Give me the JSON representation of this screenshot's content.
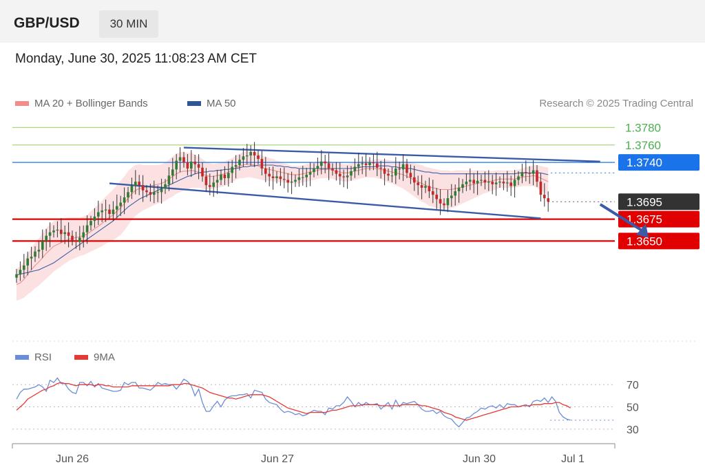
{
  "header": {
    "symbol": "GBP/USD",
    "timeframe": "30 MIN",
    "datetime": "Monday, June 30, 2025 11:08:23 AM CET"
  },
  "legend": {
    "ma20": "MA 20 + Bollinger Bands",
    "ma50": "MA 50",
    "copyright": "Research © 2025 Trading Central"
  },
  "rsi_legend": {
    "rsi": "RSI",
    "ma9": "9MA"
  },
  "colors": {
    "up": "#2e7d32",
    "down": "#c62828",
    "band": "#f8c9c9",
    "ma20": "#ef8f8f",
    "ma50": "#3f5fa8",
    "green_level": "#8bc34a",
    "blue_level": "#1a73e8",
    "red_level": "#e00000",
    "current": "#333333",
    "trend": "#3b5ba9",
    "rsi": "#6b8cd8",
    "rsi_ma": "#e53935"
  },
  "chart_data": [
    {
      "type": "candlestick",
      "title": "GBP/USD",
      "ylim": [
        1.354,
        1.38
      ],
      "x_ticks": [
        "Jun 26",
        "Jun 27",
        "Jun 30",
        "Jul 1"
      ],
      "levels": [
        {
          "value": 1.378,
          "label": "1.3780",
          "kind": "resistance"
        },
        {
          "value": 1.376,
          "label": "1.3760",
          "kind": "resistance"
        },
        {
          "value": 1.374,
          "label": "1.3740",
          "kind": "pivot"
        },
        {
          "value": 1.3695,
          "label": "1.3695",
          "kind": "current"
        },
        {
          "value": 1.3675,
          "label": "1.3675",
          "kind": "support"
        },
        {
          "value": 1.365,
          "label": "1.3650",
          "kind": "support"
        }
      ],
      "close": [
        1.3612,
        1.3617,
        1.3622,
        1.363,
        1.3632,
        1.3638,
        1.364,
        1.365,
        1.3656,
        1.366,
        1.3662,
        1.3663,
        1.3658,
        1.366,
        1.3656,
        1.3651,
        1.3649,
        1.3654,
        1.366,
        1.3668,
        1.3673,
        1.3678,
        1.3683,
        1.3685,
        1.3686,
        1.3681,
        1.3686,
        1.369,
        1.3694,
        1.37,
        1.3706,
        1.3713,
        1.3718,
        1.3714,
        1.3708,
        1.3706,
        1.3703,
        1.3706,
        1.3706,
        1.371,
        1.3715,
        1.3725,
        1.3732,
        1.3742,
        1.3746,
        1.374,
        1.3733,
        1.3741,
        1.3738,
        1.3734,
        1.3724,
        1.3714,
        1.3712,
        1.3717,
        1.372,
        1.3726,
        1.3722,
        1.3728,
        1.3735,
        1.3737,
        1.3743,
        1.3747,
        1.3748,
        1.3752,
        1.3748,
        1.3744,
        1.3733,
        1.3727,
        1.3724,
        1.3722,
        1.3724,
        1.3721,
        1.372,
        1.3717,
        1.3718,
        1.372,
        1.3723,
        1.3723,
        1.3726,
        1.3729,
        1.3733,
        1.3736,
        1.3741,
        1.3739,
        1.3733,
        1.3731,
        1.3727,
        1.3724,
        1.3723,
        1.3725,
        1.373,
        1.3735,
        1.3738,
        1.3739,
        1.3737,
        1.374,
        1.3739,
        1.3734,
        1.3733,
        1.3727,
        1.3725,
        1.3725,
        1.3733,
        1.3732,
        1.3738,
        1.3728,
        1.3723,
        1.3717,
        1.3714,
        1.3711,
        1.3713,
        1.3707,
        1.3703,
        1.3698,
        1.3693,
        1.3691,
        1.3699,
        1.3702,
        1.3707,
        1.3711,
        1.3715,
        1.3718,
        1.372,
        1.3716,
        1.3719,
        1.372,
        1.3717,
        1.3718,
        1.3715,
        1.3717,
        1.3718,
        1.3716,
        1.3717,
        1.3713,
        1.372,
        1.3724,
        1.3729,
        1.3728,
        1.3727,
        1.3731,
        1.3718,
        1.3703,
        1.3699,
        1.3695
      ],
      "ma20": [
        1.36,
        1.3602,
        1.3606,
        1.3612,
        1.3617,
        1.3622,
        1.3626,
        1.3631,
        1.3636,
        1.364,
        1.3644,
        1.3646,
        1.3648,
        1.365,
        1.3652,
        1.3653,
        1.3654,
        1.3655,
        1.3656,
        1.3658,
        1.3661,
        1.3664,
        1.3667,
        1.367,
        1.3674,
        1.3677,
        1.368,
        1.3684,
        1.3688,
        1.3693,
        1.3699,
        1.3704,
        1.3708,
        1.371,
        1.3711,
        1.3712,
        1.3713,
        1.3714,
        1.3715,
        1.3716,
        1.3718,
        1.3721,
        1.3724,
        1.3727,
        1.3729,
        1.373,
        1.373,
        1.3731,
        1.373,
        1.3729,
        1.3727,
        1.3725,
        1.3724,
        1.3724,
        1.3725,
        1.3726,
        1.3727,
        1.3729,
        1.3731,
        1.3734,
        1.3736,
        1.3737,
        1.3738,
        1.3738,
        1.3737,
        1.3736,
        1.3734,
        1.3733,
        1.3732,
        1.3731,
        1.373,
        1.3729,
        1.3728,
        1.3727,
        1.3726,
        1.3726,
        1.3726,
        1.3727,
        1.3728,
        1.3729,
        1.373,
        1.3731,
        1.3732,
        1.3732,
        1.3732,
        1.3731,
        1.373,
        1.3729,
        1.3728,
        1.3728,
        1.3729,
        1.373,
        1.3731,
        1.3732,
        1.3733,
        1.3733,
        1.3733,
        1.3733,
        1.3732,
        1.3731,
        1.373,
        1.3729,
        1.3728,
        1.3727,
        1.3726,
        1.3724,
        1.3722,
        1.372,
        1.3718,
        1.3716,
        1.3714,
        1.3712,
        1.3711,
        1.371,
        1.3709,
        1.3709,
        1.3709,
        1.3709,
        1.371,
        1.3711,
        1.3712,
        1.3713,
        1.3714,
        1.3715,
        1.3716,
        1.3717,
        1.3718,
        1.3718,
        1.3719,
        1.372,
        1.3721,
        1.3721,
        1.3721,
        1.3721,
        1.3721,
        1.3722,
        1.3723,
        1.3724,
        1.3724,
        1.3725,
        1.3724,
        1.3722,
        1.372,
        1.3718
      ],
      "ma50": [
        1.3611,
        1.3612,
        1.3613,
        1.3614,
        1.3615,
        1.3616,
        1.3617,
        1.3619,
        1.3621,
        1.3623,
        1.3625,
        1.3628,
        1.3631,
        1.3634,
        1.3637,
        1.364,
        1.3643,
        1.3646,
        1.3649,
        1.3652,
        1.3655,
        1.3658,
        1.3661,
        1.3664,
        1.3667,
        1.367,
        1.3673,
        1.3677,
        1.3681,
        1.3685,
        1.3689,
        1.3692,
        1.3695,
        1.3698,
        1.37,
        1.3702,
        1.3704,
        1.3706,
        1.3708,
        1.371,
        1.3712,
        1.3714,
        1.3716,
        1.3718,
        1.372,
        1.3722,
        1.3724,
        1.3725,
        1.3727,
        1.3728,
        1.3729,
        1.3729,
        1.373,
        1.373,
        1.3731,
        1.3731,
        1.3732,
        1.3732,
        1.3733,
        1.3733,
        1.3734,
        1.3735,
        1.3735,
        1.3736,
        1.3736,
        1.3737,
        1.3737,
        1.3737,
        1.3737,
        1.3737,
        1.3736,
        1.3736,
        1.3735,
        1.3735,
        1.3734,
        1.3734,
        1.3733,
        1.3733,
        1.3733,
        1.3733,
        1.3733,
        1.3733,
        1.3733,
        1.3733,
        1.3733,
        1.3733,
        1.3733,
        1.3733,
        1.3733,
        1.3733,
        1.3733,
        1.3734,
        1.3734,
        1.3735,
        1.3735,
        1.3735,
        1.3735,
        1.3736,
        1.3736,
        1.3736,
        1.3736,
        1.3735,
        1.3735,
        1.3734,
        1.3734,
        1.3733,
        1.3733,
        1.3732,
        1.3731,
        1.373,
        1.3729,
        1.3729,
        1.3728,
        1.3728,
        1.3727,
        1.3727,
        1.3727,
        1.3727,
        1.3727,
        1.3727,
        1.3727,
        1.3727,
        1.3727,
        1.3727,
        1.3727,
        1.3727,
        1.3727,
        1.3727,
        1.3727,
        1.3727,
        1.3727,
        1.3727,
        1.3727,
        1.3727,
        1.3727,
        1.3728,
        1.3728,
        1.3728,
        1.3728,
        1.3728,
        1.3728,
        1.3728,
        1.3727,
        1.3726
      ],
      "band_width": [
        0.0018,
        0.0019,
        0.0021,
        0.0023,
        0.0025,
        0.0026,
        0.0027,
        0.0028,
        0.0029,
        0.0029,
        0.0029,
        0.0028,
        0.0027,
        0.0026,
        0.0025,
        0.0024,
        0.0023,
        0.0022,
        0.0022,
        0.0022,
        0.0023,
        0.0024,
        0.0025,
        0.0026,
        0.0027,
        0.0028,
        0.0029,
        0.003,
        0.0031,
        0.0031,
        0.0031,
        0.003,
        0.0029,
        0.0028,
        0.0026,
        0.0025,
        0.0024,
        0.0023,
        0.0022,
        0.0022,
        0.0022,
        0.0022,
        0.0023,
        0.0023,
        0.0023,
        0.0022,
        0.0021,
        0.002,
        0.0019,
        0.0018,
        0.0017,
        0.0016,
        0.0015,
        0.0014,
        0.0014,
        0.0014,
        0.0014,
        0.0014,
        0.0014,
        0.0014,
        0.0014,
        0.0015,
        0.0015,
        0.0015,
        0.0015,
        0.0015,
        0.0014,
        0.0014,
        0.0013,
        0.0013,
        0.0012,
        0.0012,
        0.0011,
        0.0011,
        0.001,
        0.001,
        0.001,
        0.001,
        0.001,
        0.001,
        0.001,
        0.001,
        0.001,
        0.001,
        0.001,
        0.001,
        0.001,
        0.001,
        0.001,
        0.001,
        0.001,
        0.001,
        0.001,
        0.001,
        0.001,
        0.001,
        0.001,
        0.0011,
        0.0011,
        0.0012,
        0.0013,
        0.0013,
        0.0014,
        0.0015,
        0.0016,
        0.0017,
        0.0018,
        0.0019,
        0.002,
        0.0021,
        0.0021,
        0.0022,
        0.0022,
        0.0022,
        0.0022,
        0.0022,
        0.0022,
        0.0021,
        0.0021,
        0.002,
        0.0019,
        0.0018,
        0.0017,
        0.0016,
        0.0015,
        0.0014,
        0.0013,
        0.0012,
        0.0011,
        0.0011,
        0.001,
        0.001,
        0.001,
        0.001,
        0.001,
        0.001,
        0.001,
        0.0011,
        0.0011,
        0.0012,
        0.0013,
        0.0014,
        0.0015,
        0.0016,
        0.0017,
        0.0018,
        0.0019
      ],
      "trend_channel": {
        "upper": [
          [
            45,
            1.3757
          ],
          [
            157,
            1.3741
          ]
        ],
        "lower": [
          [
            25,
            1.3716
          ],
          [
            141,
            1.3676
          ]
        ]
      },
      "forecast_arrow": [
        [
          157,
          1.3692
        ],
        [
          170,
          1.3654
        ]
      ]
    },
    {
      "type": "line",
      "title": "RSI",
      "ylim": [
        20,
        85
      ],
      "y_ticks": [
        30,
        50,
        70
      ],
      "series": [
        {
          "name": "RSI",
          "values": [
            57,
            63,
            66,
            66,
            67,
            68,
            70,
            68,
            64,
            74,
            72,
            76,
            71,
            71,
            66,
            63,
            62,
            72,
            72,
            69,
            73,
            68,
            71,
            67,
            66,
            65,
            64,
            64,
            65,
            72,
            70,
            72,
            72,
            67,
            67,
            66,
            65,
            68,
            72,
            70,
            71,
            70,
            70,
            66,
            70,
            75,
            73,
            69,
            60,
            66,
            54,
            46,
            46,
            51,
            55,
            50,
            56,
            59,
            60,
            60,
            61,
            61,
            62,
            58,
            65,
            64,
            63,
            57,
            54,
            53,
            52,
            48,
            45,
            46,
            45,
            43,
            44,
            42,
            43,
            45,
            47,
            46,
            46,
            43,
            49,
            48,
            51,
            51,
            54,
            59,
            55,
            50,
            54,
            51,
            54,
            52,
            52,
            53,
            48,
            51,
            54,
            48,
            56,
            50,
            54,
            53,
            54,
            55,
            52,
            48,
            46,
            46,
            47,
            44,
            46,
            42,
            40,
            39,
            35,
            32,
            36,
            40,
            41,
            44,
            46,
            49,
            48,
            50,
            51,
            49,
            52,
            49,
            53,
            52,
            52,
            50,
            51,
            52,
            50,
            55,
            56,
            55,
            58,
            54,
            59,
            55,
            45,
            41,
            39,
            38
          ]
        },
        {
          "name": "9MA",
          "values": [
            47,
            50,
            53,
            57,
            59,
            61,
            63,
            65,
            66,
            68,
            69,
            71,
            72,
            71,
            71,
            70,
            69,
            70,
            70,
            70,
            70,
            69,
            70,
            70,
            69,
            69,
            68,
            68,
            68,
            68,
            68,
            69,
            69,
            69,
            69,
            69,
            69,
            69,
            69,
            69,
            69,
            69,
            70,
            70,
            70,
            71,
            71,
            70,
            69,
            68,
            67,
            65,
            63,
            62,
            61,
            60,
            59,
            58,
            58,
            57,
            58,
            59,
            60,
            61,
            61,
            61,
            61,
            60,
            59,
            57,
            55,
            53,
            51,
            49,
            48,
            47,
            46,
            45,
            44,
            45,
            45,
            45,
            45,
            45,
            46,
            47,
            47,
            48,
            49,
            50,
            51,
            51,
            51,
            52,
            52,
            52,
            52,
            52,
            51,
            51,
            51,
            51,
            51,
            51,
            52,
            52,
            52,
            52,
            52,
            51,
            51,
            50,
            49,
            48,
            47,
            45,
            44,
            43,
            41,
            40,
            39,
            38,
            39,
            40,
            41,
            42,
            43,
            44,
            45,
            46,
            47,
            48,
            49,
            50,
            50,
            50,
            51,
            51,
            51,
            52,
            52,
            52,
            53,
            53,
            53,
            54,
            54,
            52,
            51,
            49
          ]
        }
      ]
    }
  ]
}
